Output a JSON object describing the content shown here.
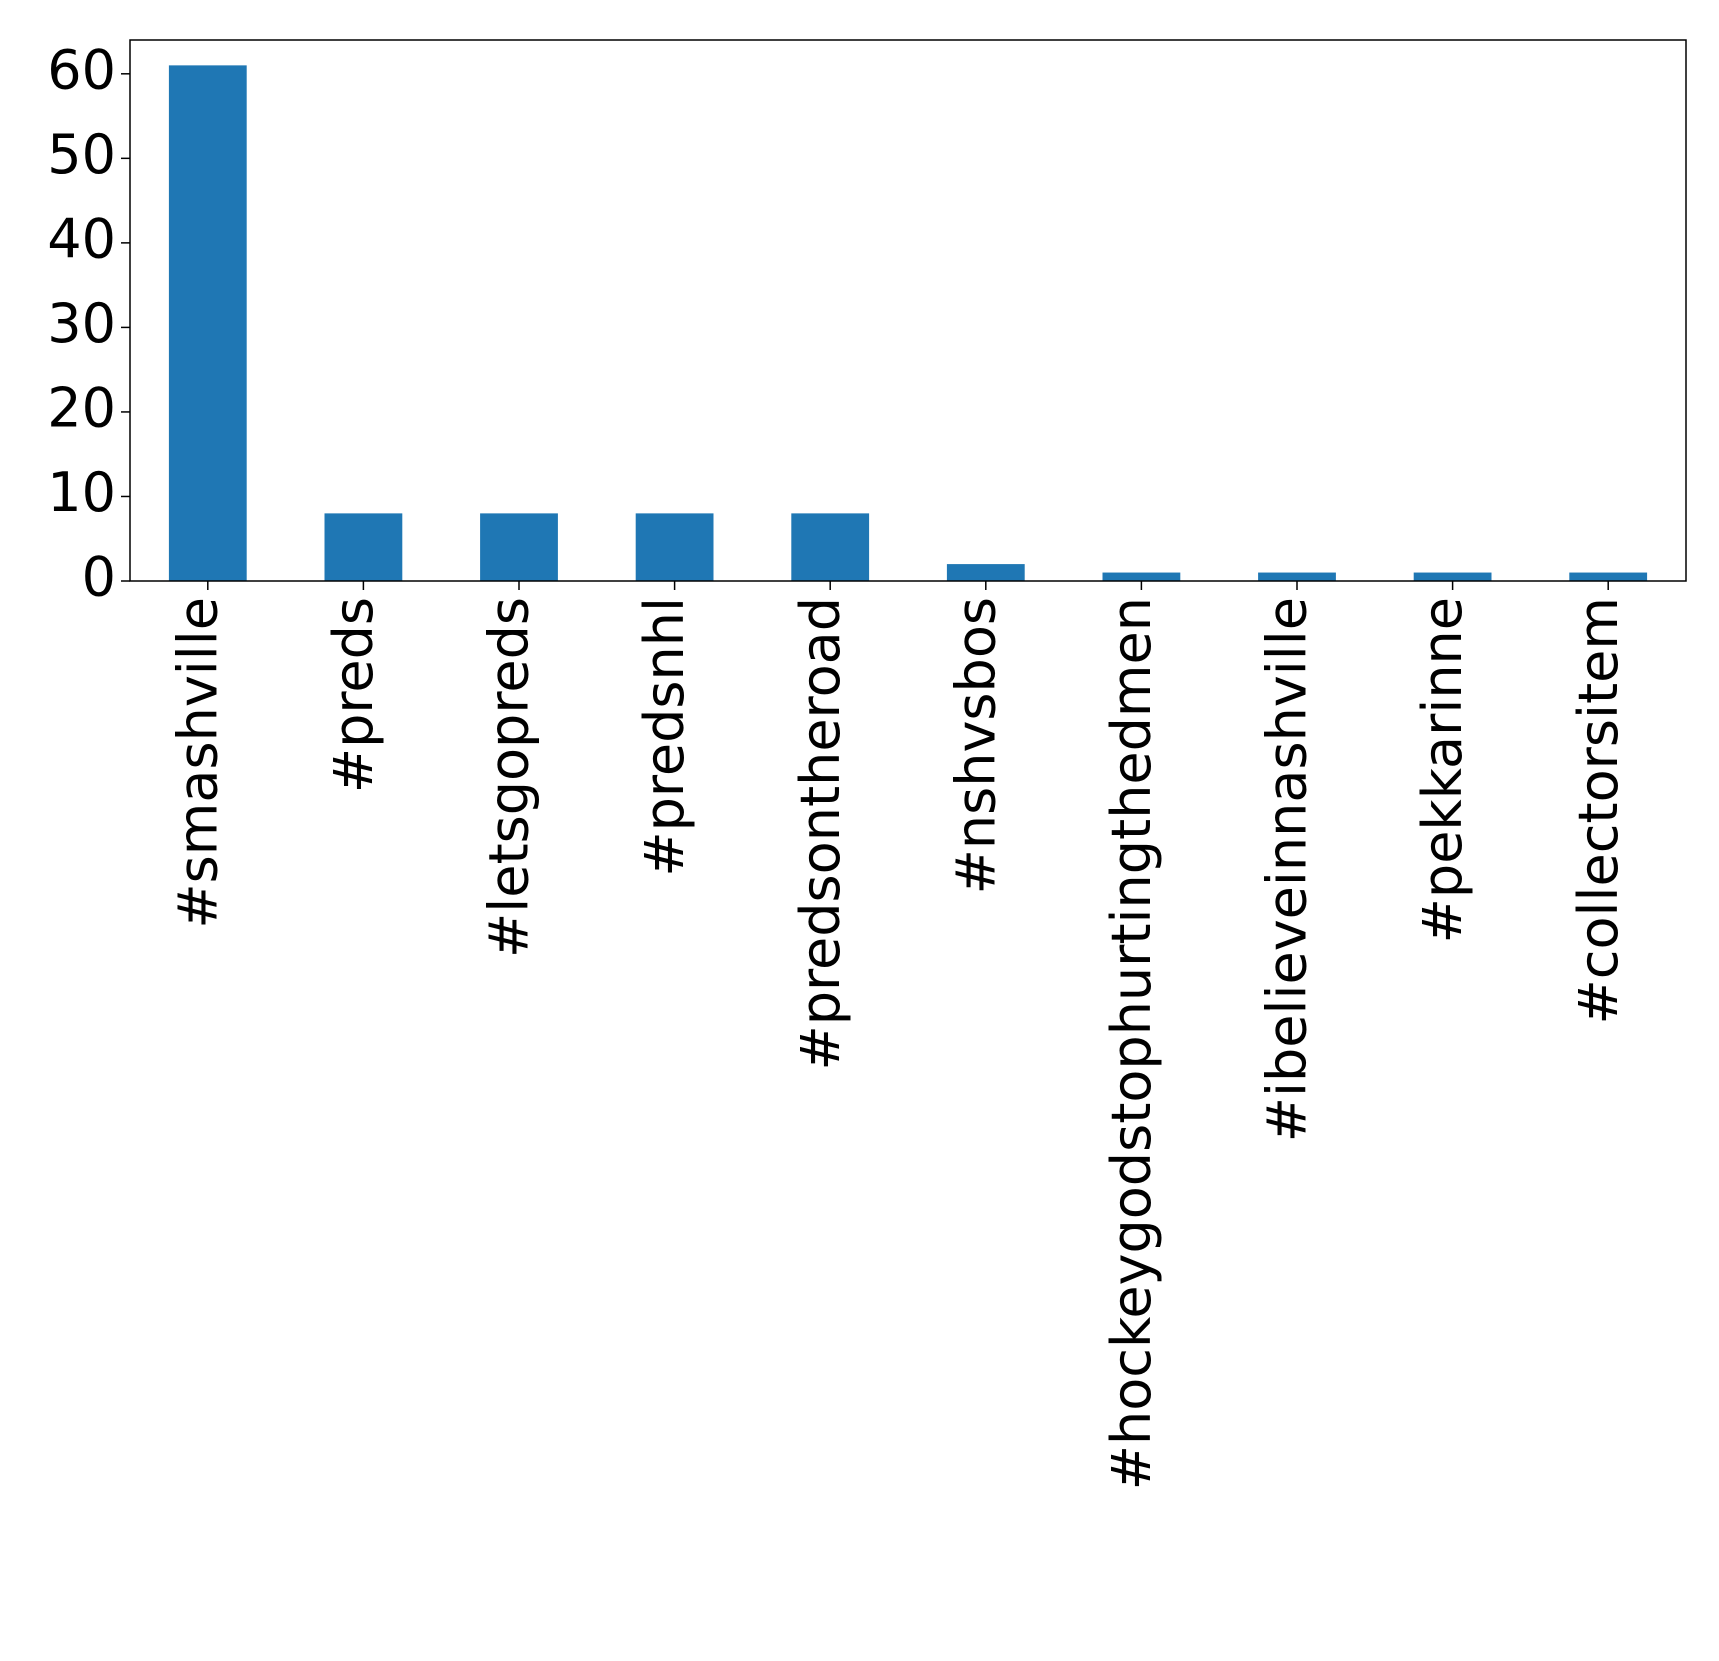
{
  "chart_data": {
    "type": "bar",
    "title": "",
    "xlabel": "",
    "ylabel": "",
    "categories": [
      "#smashville",
      "#preds",
      "#letsgopreds",
      "#predsnhl",
      "#predsontheroad",
      "#nshvsbos",
      "#hockeygodstophurtingthedmen",
      "#ibelieveinnashville",
      "#pekkarinne",
      "#collectorsitem"
    ],
    "values": [
      61,
      8,
      8,
      8,
      8,
      2,
      1,
      1,
      1,
      1
    ],
    "ylim": [
      0,
      64
    ],
    "yticks": [
      0,
      10,
      20,
      30,
      40,
      50,
      60
    ],
    "ytick_labels": [
      "0",
      "10",
      "20",
      "30",
      "40",
      "50",
      "60"
    ],
    "bar_color": "#1f77b4",
    "grid": false,
    "legend": "none"
  }
}
